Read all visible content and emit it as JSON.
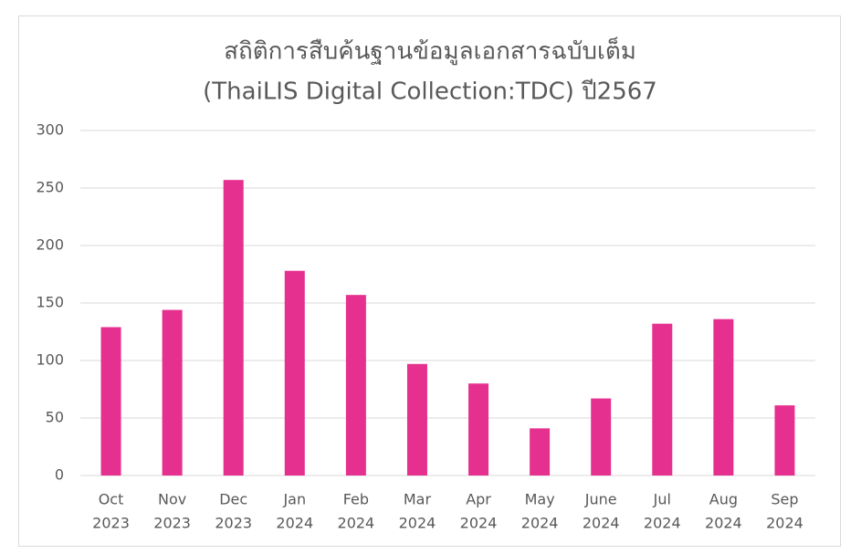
{
  "chart_data": {
    "type": "bar",
    "title": [
      "สถิติการสืบค้นฐานข้อมูลเอกสารฉบับเต็ม",
      "(ThaiLIS Digital Collection:TDC) ปี2567"
    ],
    "categories": [
      [
        "Oct",
        "2023"
      ],
      [
        "Nov",
        "2023"
      ],
      [
        "Dec",
        "2023"
      ],
      [
        "Jan",
        "2024"
      ],
      [
        "Feb",
        "2024"
      ],
      [
        "Mar",
        "2024"
      ],
      [
        "Apr",
        "2024"
      ],
      [
        "May",
        "2024"
      ],
      [
        "June",
        "2024"
      ],
      [
        "Jul",
        "2024"
      ],
      [
        "Aug",
        "2024"
      ],
      [
        "Sep",
        "2024"
      ]
    ],
    "values": [
      129,
      144,
      257,
      178,
      157,
      97,
      80,
      41,
      67,
      132,
      136,
      61
    ],
    "color": "#e6308f",
    "ylim": [
      0,
      300
    ],
    "yticks": [
      0,
      50,
      100,
      150,
      200,
      250,
      300
    ],
    "grid": true
  }
}
